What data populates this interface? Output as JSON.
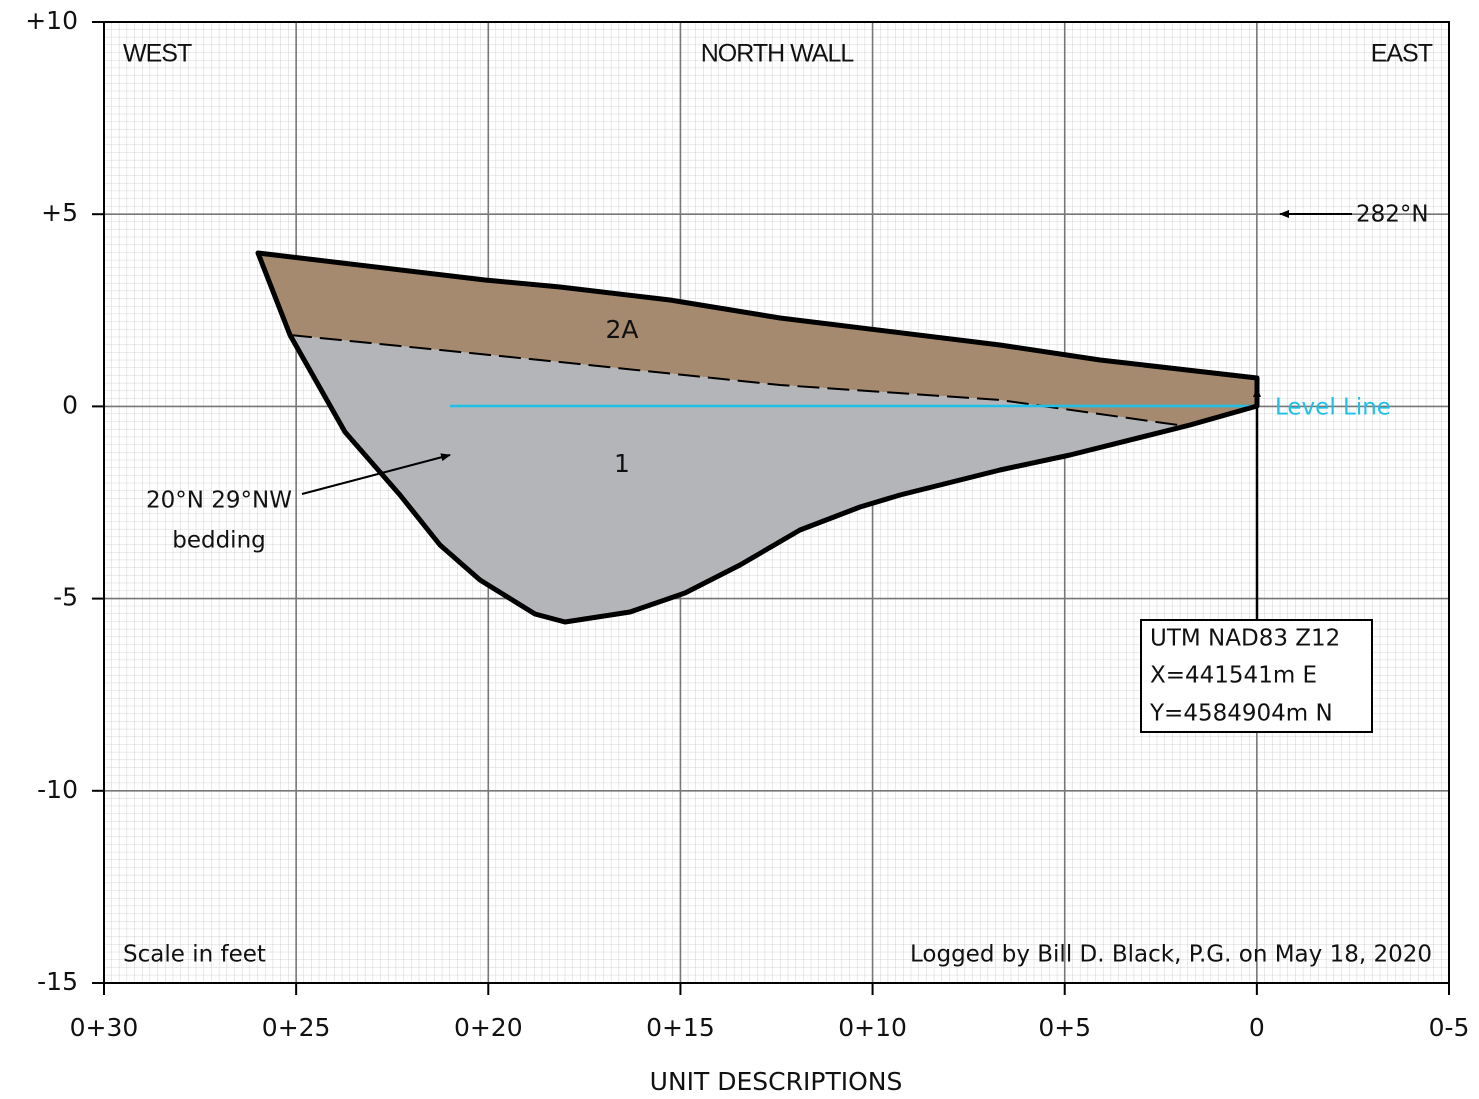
{
  "header": {
    "west": "WEST",
    "title": "NORTH WALL",
    "east": "EAST"
  },
  "axes": {
    "y_labels": [
      "+10",
      "+5",
      "0",
      "-5",
      "-10",
      "-15"
    ],
    "x_labels": [
      "0+30",
      "0+25",
      "0+20",
      "0+15",
      "0+10",
      "0+5",
      "0",
      "0-5"
    ],
    "x_title": "UNIT DESCRIPTIONS"
  },
  "units": {
    "upper": "2A",
    "lower": "1"
  },
  "annotations": {
    "bearing": "282°N",
    "level_line": "Level Line",
    "bedding": [
      "20°N 29°NW",
      "bedding"
    ],
    "location": [
      "UTM NAD83 Z12",
      "X=441541m E",
      "Y=4584904m N"
    ]
  },
  "footer": {
    "scale": "Scale in feet",
    "logged_by": "Logged by Bill D. Black, P.G. on May 18, 2020"
  }
}
